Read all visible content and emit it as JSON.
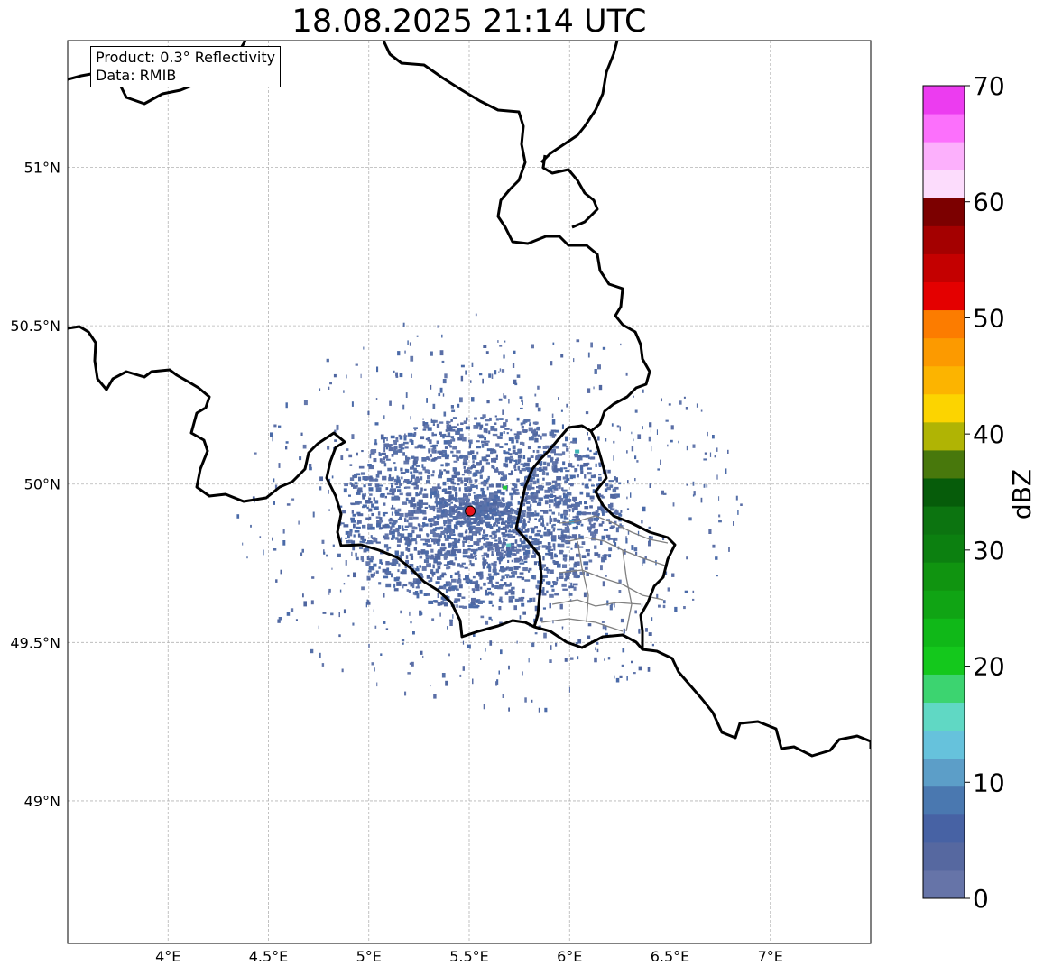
{
  "title": "18.08.2025 21:14 UTC",
  "info": {
    "product": "Product: 0.3° Reflectivity",
    "data": "Data: RMIB"
  },
  "map": {
    "lon_range": [
      3.5,
      7.5
    ],
    "lat_range": [
      48.55,
      51.4
    ],
    "lon_ticks": [
      {
        "value": 4.0,
        "label": "4°E"
      },
      {
        "value": 4.5,
        "label": "4.5°E"
      },
      {
        "value": 5.0,
        "label": "5°E"
      },
      {
        "value": 5.5,
        "label": "5.5°E"
      },
      {
        "value": 6.0,
        "label": "6°E"
      },
      {
        "value": 6.5,
        "label": "6.5°E"
      },
      {
        "value": 7.0,
        "label": "7°E"
      }
    ],
    "lat_ticks": [
      {
        "value": 49.0,
        "label": "49°N"
      },
      {
        "value": 49.5,
        "label": "49.5°N"
      },
      {
        "value": 50.0,
        "label": "50°N"
      },
      {
        "value": 50.5,
        "label": "50.5°N"
      },
      {
        "value": 51.0,
        "label": "51°N"
      }
    ],
    "gridlines": true,
    "radar_site": {
      "lon": 5.505,
      "lat": 49.915,
      "color": "#e8141c"
    }
  },
  "colorbar": {
    "label": "dBZ",
    "min": 0,
    "max": 70,
    "tick_values": [
      0,
      10,
      20,
      30,
      40,
      50,
      60,
      70
    ],
    "tick_labels": [
      "0",
      "10",
      "20",
      "30",
      "40",
      "50",
      "60",
      "70"
    ],
    "colors": [
      "#6674a8",
      "#5668a0",
      "#4762a4",
      "#4a78b0",
      "#5c9ec8",
      "#66c2dc",
      "#60d8c4",
      "#3cd470",
      "#14c81c",
      "#10b818",
      "#10a414",
      "#109410",
      "#0c8010",
      "#0c7410",
      "#065c0a",
      "#48780c",
      "#b0b404",
      "#fcd400",
      "#fcb400",
      "#fc9a00",
      "#fc7c00",
      "#e40000",
      "#c40000",
      "#a40000",
      "#7c0000",
      "#fcdcfc",
      "#fcb0fc",
      "#fc70fc",
      "#ec3cf0"
    ]
  }
}
